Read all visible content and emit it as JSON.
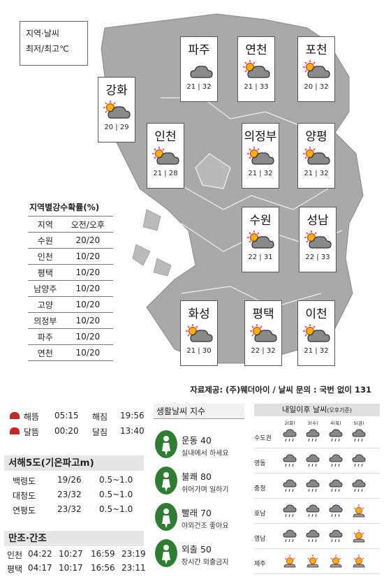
{
  "legend": {
    "line1": "지역·날씨",
    "line2": "최저/최고℃"
  },
  "cities": [
    {
      "name": "파주",
      "min": "21",
      "max": "32",
      "weather": "cloudy"
    },
    {
      "name": "연천",
      "min": "21",
      "max": "33",
      "weather": "partly-cloudy"
    },
    {
      "name": "포천",
      "min": "20",
      "max": "32",
      "weather": "partly-cloudy"
    },
    {
      "name": "강화",
      "min": "20",
      "max": "29",
      "weather": "partly-cloudy"
    },
    {
      "name": "인천",
      "min": "21",
      "max": "28",
      "weather": "partly-cloudy"
    },
    {
      "name": "의정부",
      "min": "21",
      "max": "32",
      "weather": "partly-cloudy"
    },
    {
      "name": "양평",
      "min": "21",
      "max": "32",
      "weather": "partly-cloudy"
    },
    {
      "name": "수원",
      "min": "22",
      "max": "31",
      "weather": "partly-cloudy"
    },
    {
      "name": "성남",
      "min": "22",
      "max": "33",
      "weather": "partly-cloudy"
    },
    {
      "name": "화성",
      "min": "21",
      "max": "30",
      "weather": "partly-cloudy"
    },
    {
      "name": "평택",
      "min": "22",
      "max": "32",
      "weather": "partly-cloudy"
    },
    {
      "name": "이천",
      "min": "21",
      "max": "32",
      "weather": "partly-cloudy"
    }
  ],
  "rain": {
    "title": "지역별강수확률(%)",
    "header": [
      "지역",
      "오전/오후"
    ],
    "rows": [
      [
        "수원",
        "20/20"
      ],
      [
        "인천",
        "10/20"
      ],
      [
        "평택",
        "10/20"
      ],
      [
        "남양주",
        "10/20"
      ],
      [
        "고양",
        "10/20"
      ],
      [
        "의정부",
        "10/20"
      ],
      [
        "파주",
        "10/20"
      ],
      [
        "연천",
        "10/20"
      ]
    ]
  },
  "source": "자료제공: (주)웨더아이 / 날씨 문의 : 국번 없이 131",
  "sun": [
    {
      "label1": "해뜸",
      "time1": "05:15",
      "label2": "해짐",
      "time2": "19:56"
    },
    {
      "label1": "달뜸",
      "time1": "00:20",
      "label2": "달짐",
      "time2": "13:40"
    }
  ],
  "sea": {
    "title": "서해5도(기온파고m)",
    "rows": [
      [
        "백령도",
        "19/26",
        "0.5~1.0"
      ],
      [
        "대청도",
        "23/32",
        "0.5~1.0"
      ],
      [
        "연평도",
        "23/32",
        "0.5~1.0"
      ]
    ]
  },
  "tide": {
    "title": "만조·간조",
    "rows": [
      [
        "인천",
        "04:22",
        "10:27",
        "16:59",
        "23:19"
      ],
      [
        "평택",
        "04:17",
        "10:17",
        "16:56",
        "23:11"
      ]
    ]
  },
  "life": {
    "title": "생활날씨 지수",
    "items": [
      {
        "title": "운동 40",
        "desc": "실내에서 하세요"
      },
      {
        "title": "불쾌 80",
        "desc": "쉬어가며 일하기"
      },
      {
        "title": "빨래 70",
        "desc": "야외건조 좋아요"
      },
      {
        "title": "외출 50",
        "desc": "장시간 외출금지"
      }
    ]
  },
  "week": {
    "title": "내일이후 날씨",
    "subtitle": "(오후기준)",
    "days": [
      "2(화)",
      "3(수)",
      "4(목)",
      "5(금)"
    ],
    "rows": [
      {
        "region": "수도권",
        "icons": [
          "rain",
          "rain",
          "rain",
          "rain"
        ]
      },
      {
        "region": "영동",
        "icons": [
          "rain",
          "rain",
          "rain",
          "rain"
        ]
      },
      {
        "region": "충청",
        "icons": [
          "rain",
          "rain",
          "rain",
          "rain"
        ]
      },
      {
        "region": "호남",
        "icons": [
          "rain",
          "rain",
          "rain",
          "sun-cloud"
        ]
      },
      {
        "region": "영남",
        "icons": [
          "rain",
          "rain",
          "rain",
          "sun-cloud"
        ]
      },
      {
        "region": "제주",
        "icons": [
          "sun-cloud",
          "sun-cloud",
          "sun-cloud",
          "sun-cloud"
        ]
      }
    ]
  },
  "colors": {
    "map_land": "#a9a9a9",
    "map_border": "#ffffff",
    "sun": "#e53935",
    "cloud": "#777777",
    "accent_green": "#2e7d32"
  }
}
